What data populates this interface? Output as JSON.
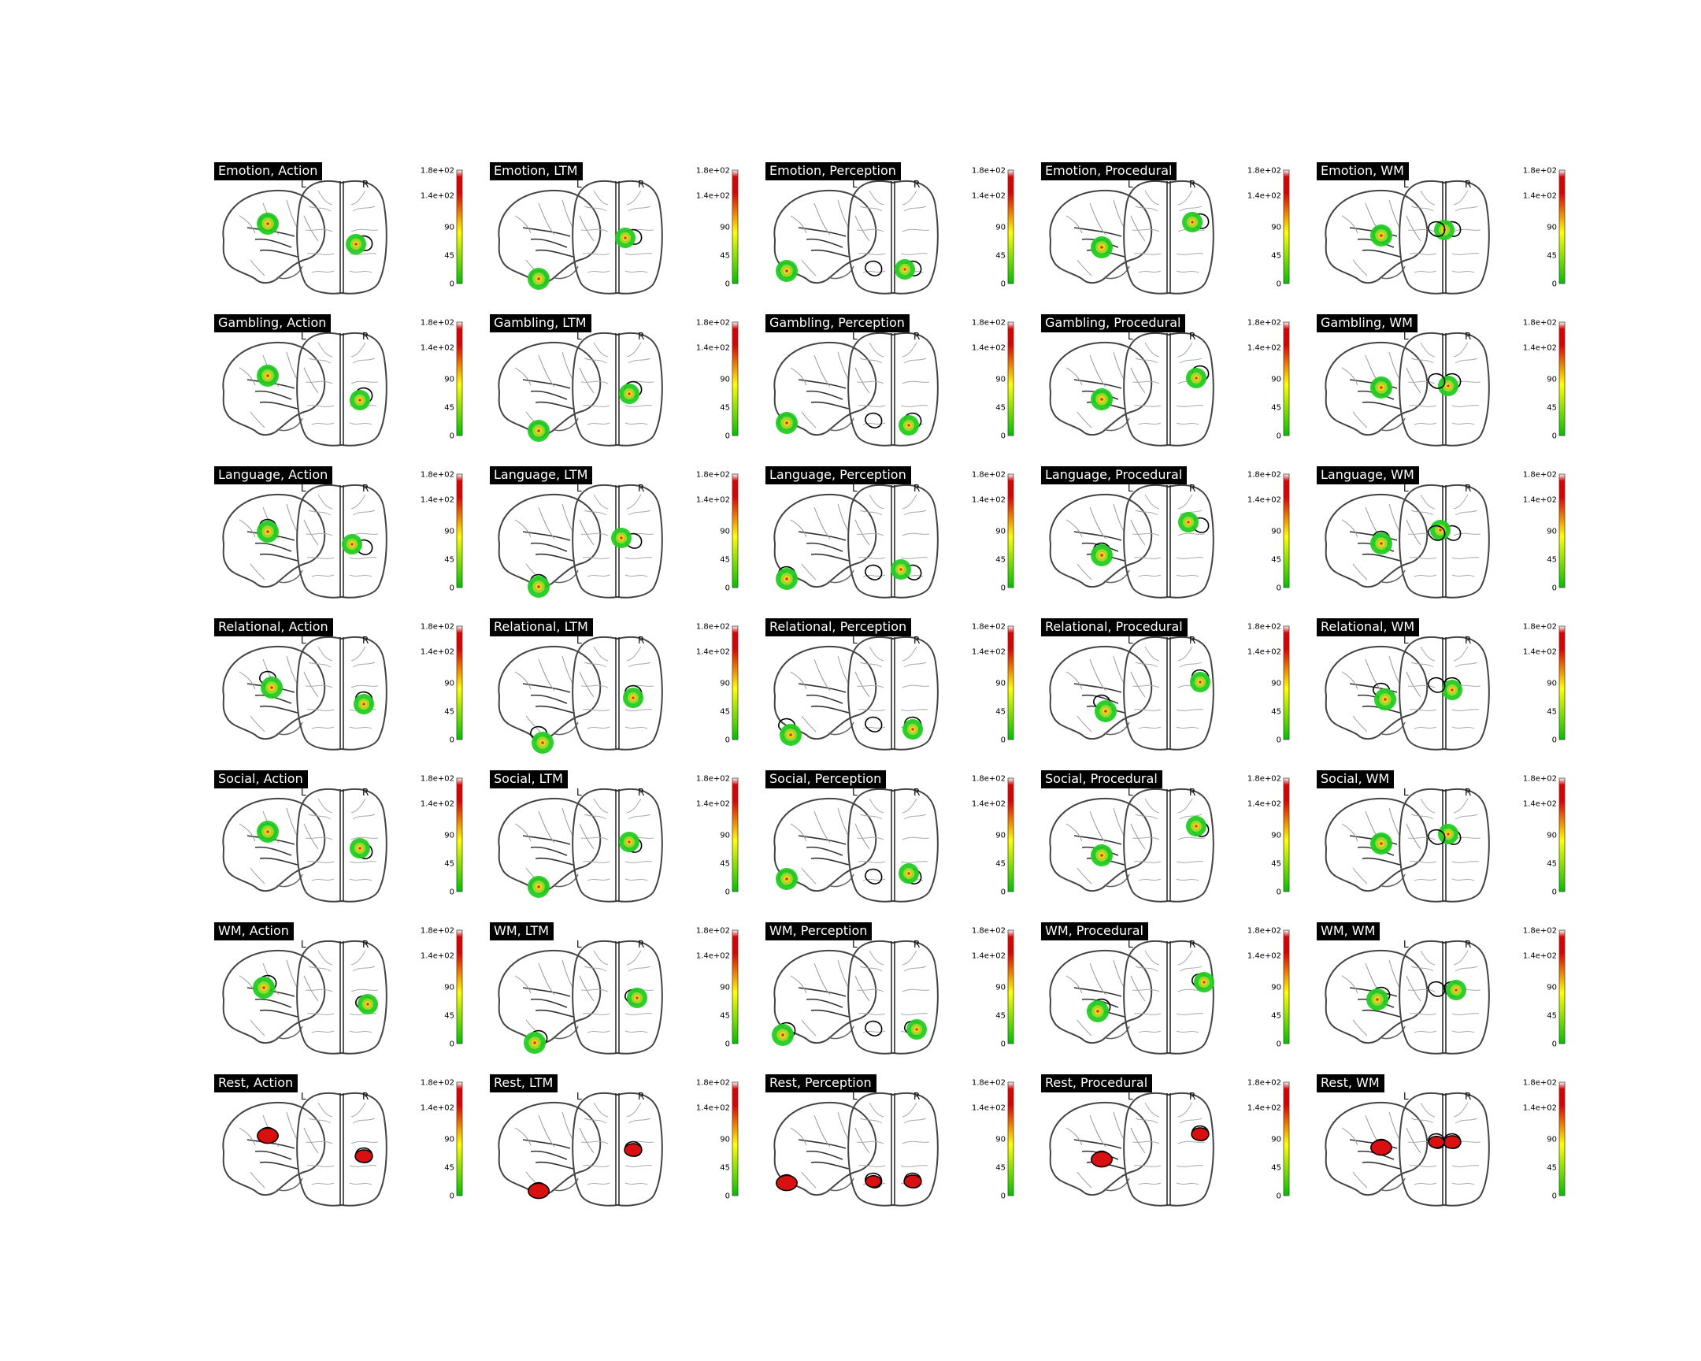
{
  "figure": {
    "orientation_labels": {
      "left": "L",
      "right": "R"
    },
    "colorbar": {
      "ticks": [
        "1.8e+02",
        "1.4e+02",
        "90",
        "45",
        "0"
      ],
      "tick_values": [
        180,
        140,
        90,
        45,
        0
      ],
      "range": [
        0,
        180
      ],
      "colors": {
        "low": "#00c000",
        "mid": "#ffff00",
        "high": "#dd0000",
        "top": "#ffffff"
      }
    },
    "rows": [
      "Emotion",
      "Gambling",
      "Language",
      "Relational",
      "Social",
      "WM",
      "Rest"
    ],
    "columns": [
      "Action",
      "LTM",
      "Perception",
      "Procedural",
      "WM"
    ],
    "panels": [
      [
        "Emotion, Action",
        "Emotion, LTM",
        "Emotion, Perception",
        "Emotion, Procedural",
        "Emotion, WM"
      ],
      [
        "Gambling, Action",
        "Gambling, LTM",
        "Gambling, Perception",
        "Gambling, Procedural",
        "Gambling, WM"
      ],
      [
        "Language, Action",
        "Language, LTM",
        "Language, Perception",
        "Language, Procedural",
        "Language, WM"
      ],
      [
        "Relational, Action",
        "Relational, LTM",
        "Relational, Perception",
        "Relational, Procedural",
        "Relational, WM"
      ],
      [
        "Social, Action",
        "Social, LTM",
        "Social, Perception",
        "Social, Procedural",
        "Social, WM"
      ],
      [
        "WM, Action",
        "WM, LTM",
        "WM, Perception",
        "WM, Procedural",
        "WM, WM"
      ],
      [
        "Rest, Action",
        "Rest, LTM",
        "Rest, Perception",
        "Rest, Procedural",
        "Rest, WM"
      ]
    ]
  }
}
